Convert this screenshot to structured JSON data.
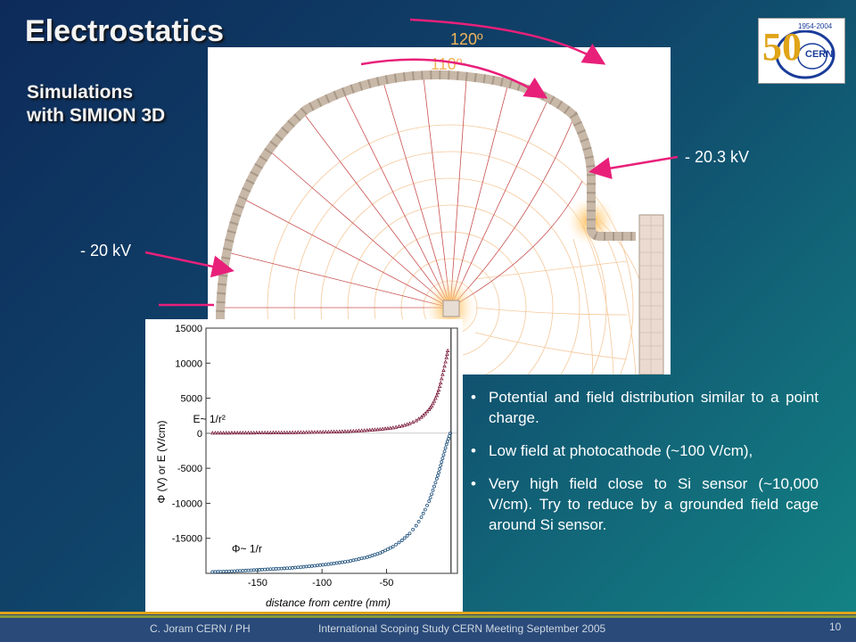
{
  "slide": {
    "title": "Electrostatics",
    "subtitle_line1": "Simulations",
    "subtitle_line2": "with SIMION 3D"
  },
  "annotations": {
    "angle_outer": "120º",
    "angle_inner": "110º",
    "voltage_right": "- 20.3 kV",
    "voltage_left": "- 20 kV",
    "arrow_color": "#e8207a",
    "angle_color": "#f2b45a"
  },
  "logo": {
    "years": "1954-2004",
    "name": "CERN",
    "numeral": "50"
  },
  "bullets": [
    "Potential and field distribution similar to a point charge.",
    "Low field at photocathode (~100 V/cm),",
    "Very high field close to Si sensor (~10,000 V/cm). Try to reduce by a grounded field cage around Si sensor."
  ],
  "footer": {
    "author": "C. Joram CERN / PH",
    "event": "International Scoping Study CERN Meeting September 2005",
    "page": "10"
  },
  "chart_data": {
    "type": "scatter",
    "xlabel": "distance from centre (mm)",
    "ylabel": "Φ (V) or E (V/cm)",
    "xlim": [
      -190,
      5
    ],
    "ylim": [
      -20000,
      15000
    ],
    "xticks": [
      -150,
      -100,
      -50
    ],
    "yticks": [
      15000,
      10000,
      5000,
      0,
      -5000,
      -10000,
      -15000
    ],
    "vline_x": 0,
    "series": [
      {
        "name": "E",
        "color": "#7a1a3a",
        "annotation": "E~ 1/r²",
        "annotation_at": [
          -200,
          1500
        ],
        "x": [
          -185,
          -170,
          -155,
          -140,
          -125,
          -110,
          -95,
          -80,
          -65,
          -55,
          -45,
          -38,
          -32,
          -27,
          -23,
          -20,
          -17,
          -15,
          -13,
          -11,
          -9.5,
          -8,
          -6.5,
          -5,
          -3.5,
          -2.5
        ],
        "values": [
          50,
          60,
          70,
          90,
          110,
          150,
          200,
          280,
          430,
          580,
          800,
          1050,
          1400,
          1800,
          2300,
          2800,
          3400,
          3900,
          4600,
          5400,
          6200,
          7200,
          8400,
          9600,
          10800,
          11800
        ]
      },
      {
        "name": "Φ",
        "color": "#1a4d7a",
        "annotation": "Φ~ 1/r",
        "annotation_at": [
          -170,
          -17000
        ],
        "x": [
          -185,
          -170,
          -155,
          -140,
          -125,
          -110,
          -95,
          -80,
          -65,
          -55,
          -45,
          -38,
          -32,
          -27,
          -23,
          -20,
          -17,
          -15,
          -13,
          -11,
          -9.5,
          -8,
          -6.5,
          -5,
          -3.5,
          -2,
          -0.5
        ],
        "values": [
          -19800,
          -19700,
          -19550,
          -19400,
          -19250,
          -19000,
          -18700,
          -18300,
          -17700,
          -17100,
          -16200,
          -15300,
          -14300,
          -13200,
          -12000,
          -10900,
          -9700,
          -8700,
          -7600,
          -6500,
          -5600,
          -4600,
          -3600,
          -2600,
          -1600,
          -800,
          0
        ]
      }
    ]
  }
}
